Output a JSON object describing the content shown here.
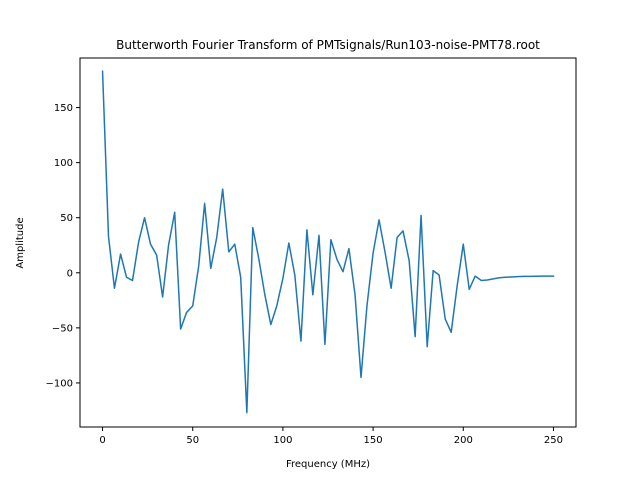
{
  "chart_data": {
    "type": "line",
    "title": "Butterworth Fourier Transform of PMTsignals/Run103-noise-PMT78.root",
    "xlabel": "Frequency (MHz)",
    "ylabel": "Amplitude",
    "xlim": [
      -12.5,
      262.5
    ],
    "ylim": [
      -140,
      195
    ],
    "grid": false,
    "xticks": [
      0,
      50,
      100,
      150,
      200,
      250
    ],
    "xtick_labels": [
      "0",
      "50",
      "100",
      "150",
      "200",
      "250"
    ],
    "yticks": [
      -100,
      -50,
      0,
      50,
      100,
      150
    ],
    "ytick_labels": [
      "−100",
      "−50",
      "0",
      "50",
      "100",
      "150"
    ],
    "series": [
      {
        "color": "#1f77b4",
        "x": [
          0,
          3.3,
          6.6,
          10,
          13.3,
          16.6,
          20,
          23.3,
          26.6,
          30,
          33.3,
          36.6,
          40,
          43.3,
          46.6,
          50,
          53.3,
          56.6,
          60,
          63.3,
          66.6,
          70,
          73.3,
          76.6,
          80,
          83.3,
          86.6,
          90,
          93.3,
          96.6,
          100,
          103.3,
          106.6,
          110,
          113.3,
          116.6,
          120,
          123.3,
          126.6,
          130,
          133.3,
          136.6,
          140,
          143.3,
          146.6,
          150,
          153.3,
          156.6,
          160,
          163.3,
          166.6,
          170,
          173.3,
          176.6,
          180,
          183.3,
          186.6,
          190,
          193.3,
          196.6,
          200,
          203.3,
          206.6,
          210,
          213.3,
          216.6,
          220,
          223.3,
          226.6,
          230,
          233.3,
          236.6,
          240,
          243.3,
          246.6,
          250
        ],
        "values": [
          183,
          33,
          -14,
          17,
          -4,
          -7,
          28,
          50,
          26,
          16,
          -22,
          25,
          55,
          -51,
          -36,
          -30,
          6,
          63,
          4,
          32,
          76,
          19,
          26,
          -4,
          -127,
          41,
          13,
          -20,
          -47,
          -30,
          -5,
          27,
          -2,
          -62,
          39,
          -20,
          34,
          -65,
          30,
          12,
          1,
          22,
          -20,
          -95,
          -30,
          18,
          48,
          19,
          -14,
          32,
          38,
          11,
          -58,
          52,
          -67,
          2,
          -2,
          -42,
          -54,
          -12,
          26,
          -15,
          -3,
          -7,
          -6.5,
          -5.5,
          -4.5,
          -4,
          -3.8,
          -3.5,
          -3.3,
          -3.2,
          -3.1,
          -3,
          -3,
          -3
        ]
      }
    ]
  }
}
